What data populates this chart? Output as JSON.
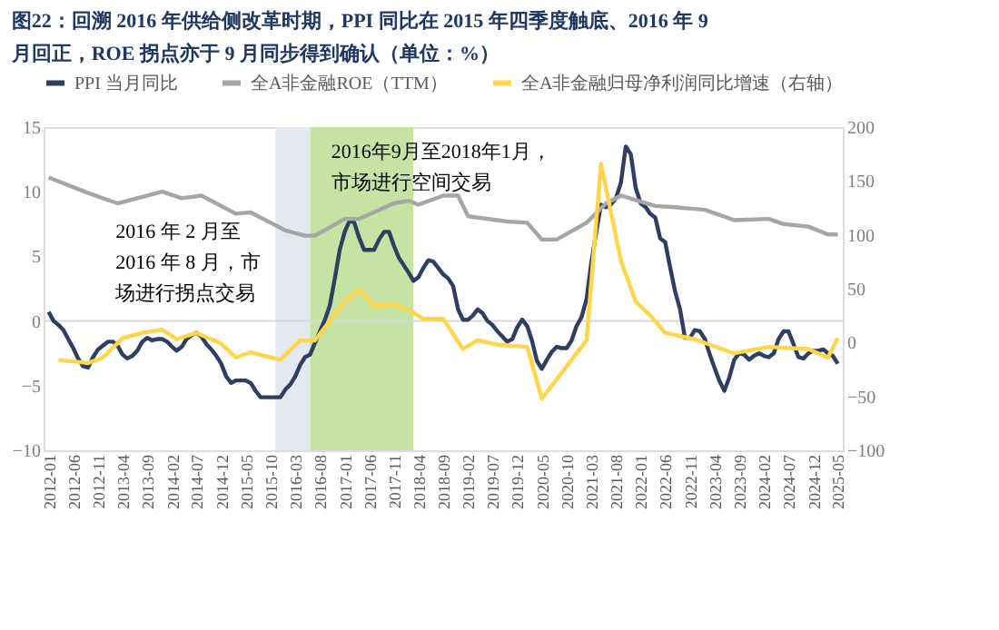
{
  "chart_data": {
    "type": "line",
    "title": "图22：回溯 2016 年供给侧改革时期，PPI 同比在 2015 年四季度触底、2016 年 9 月回正，ROE 拐点亦于 9 月同步得到确认（单位：%）",
    "x": [
      "2012-01",
      "2012-02",
      "2012-03",
      "2012-04",
      "2012-05",
      "2012-06",
      "2012-07",
      "2012-08",
      "2012-09",
      "2012-10",
      "2012-11",
      "2012-12",
      "2013-01",
      "2013-02",
      "2013-03",
      "2013-04",
      "2013-05",
      "2013-06",
      "2013-07",
      "2013-08",
      "2013-09",
      "2013-10",
      "2013-11",
      "2013-12",
      "2014-01",
      "2014-02",
      "2014-03",
      "2014-04",
      "2014-05",
      "2014-06",
      "2014-07",
      "2014-08",
      "2014-09",
      "2014-10",
      "2014-11",
      "2014-12",
      "2015-01",
      "2015-02",
      "2015-03",
      "2015-04",
      "2015-05",
      "2015-06",
      "2015-07",
      "2015-08",
      "2015-09",
      "2015-10",
      "2015-11",
      "2015-12",
      "2016-01",
      "2016-02",
      "2016-03",
      "2016-04",
      "2016-05",
      "2016-06",
      "2016-07",
      "2016-08",
      "2016-09",
      "2016-10",
      "2016-11",
      "2016-12",
      "2017-01",
      "2017-02",
      "2017-03",
      "2017-04",
      "2017-05",
      "2017-06",
      "2017-07",
      "2017-08",
      "2017-09",
      "2017-10",
      "2017-11",
      "2017-12",
      "2018-01",
      "2018-02",
      "2018-03",
      "2018-04",
      "2018-05",
      "2018-06",
      "2018-07",
      "2018-08",
      "2018-09",
      "2018-10",
      "2018-11",
      "2018-12",
      "2019-01",
      "2019-02",
      "2019-03",
      "2019-04",
      "2019-05",
      "2019-06",
      "2019-07",
      "2019-08",
      "2019-09",
      "2019-10",
      "2019-11",
      "2019-12",
      "2020-01",
      "2020-02",
      "2020-03",
      "2020-04",
      "2020-05",
      "2020-06",
      "2020-07",
      "2020-08",
      "2020-09",
      "2020-10",
      "2020-11",
      "2020-12",
      "2021-01",
      "2021-02",
      "2021-03",
      "2021-04",
      "2021-05",
      "2021-06",
      "2021-07",
      "2021-08",
      "2021-09",
      "2021-10",
      "2021-11",
      "2021-12",
      "2022-01",
      "2022-02",
      "2022-03",
      "2022-04",
      "2022-05",
      "2022-06",
      "2022-07",
      "2022-08",
      "2022-09",
      "2022-10",
      "2022-11",
      "2022-12",
      "2023-01",
      "2023-02",
      "2023-03",
      "2023-04",
      "2023-05",
      "2023-06",
      "2023-07",
      "2023-08",
      "2023-09",
      "2023-10",
      "2023-11",
      "2023-12",
      "2024-01",
      "2024-02",
      "2024-03",
      "2024-04",
      "2024-05",
      "2024-06",
      "2024-07",
      "2024-08",
      "2024-09",
      "2024-10",
      "2024-11",
      "2024-12",
      "2025-01",
      "2025-02",
      "2025-03",
      "2025-04",
      "2025-05"
    ],
    "series": [
      {
        "name": "PPI 当月同比",
        "color": "#2e3f63",
        "values": [
          0.7,
          0.0,
          -0.3,
          -0.7,
          -1.4,
          -2.1,
          -2.9,
          -3.5,
          -3.6,
          -2.8,
          -2.2,
          -1.9,
          -1.6,
          -1.6,
          -1.9,
          -2.6,
          -2.9,
          -2.7,
          -2.3,
          -1.6,
          -1.3,
          -1.5,
          -1.4,
          -1.4,
          -1.6,
          -2.0,
          -2.3,
          -2.0,
          -1.4,
          -1.1,
          -0.9,
          -1.2,
          -1.8,
          -2.2,
          -2.7,
          -3.3,
          -4.3,
          -4.8,
          -4.6,
          -4.6,
          -4.6,
          -4.8,
          -5.4,
          -5.9,
          -5.9,
          -5.9,
          -5.9,
          -5.9,
          -5.3,
          -4.9,
          -4.3,
          -3.4,
          -2.8,
          -2.6,
          -1.7,
          -0.8,
          0.1,
          1.2,
          3.3,
          5.5,
          6.9,
          7.8,
          7.6,
          6.4,
          5.5,
          5.5,
          5.5,
          6.3,
          6.9,
          6.9,
          5.8,
          4.9,
          4.3,
          3.7,
          3.1,
          3.4,
          4.1,
          4.7,
          4.6,
          4.1,
          3.6,
          3.3,
          2.7,
          0.9,
          0.1,
          0.1,
          0.4,
          0.9,
          0.6,
          0.0,
          -0.3,
          -0.8,
          -1.2,
          -1.6,
          -1.4,
          -0.5,
          0.1,
          -0.4,
          -1.5,
          -3.1,
          -3.7,
          -3.0,
          -2.4,
          -2.0,
          -2.1,
          -2.1,
          -1.5,
          -0.4,
          0.3,
          1.7,
          4.4,
          6.8,
          9.0,
          8.8,
          9.0,
          9.5,
          10.7,
          13.5,
          12.9,
          10.3,
          9.1,
          8.8,
          8.3,
          8.0,
          6.4,
          6.1,
          4.2,
          2.3,
          0.9,
          -1.3,
          -1.3,
          -0.7,
          -0.8,
          -1.4,
          -2.5,
          -3.6,
          -4.6,
          -5.4,
          -4.4,
          -3.0,
          -2.5,
          -2.6,
          -3.0,
          -2.7,
          -2.5,
          -2.7,
          -2.8,
          -2.5,
          -1.4,
          -0.8,
          -0.8,
          -1.8,
          -2.8,
          -2.9,
          -2.5,
          -2.3,
          -2.3,
          -2.2,
          -2.5,
          -2.7,
          -3.3
        ]
      },
      {
        "name": "全A非金融ROE（TTM）",
        "color": "#a6a6a6",
        "x": [
          "2012-01",
          "2012-09",
          "2013-03",
          "2013-12",
          "2014-04",
          "2014-08",
          "2015-03",
          "2015-06",
          "2016-01",
          "2016-05",
          "2016-07",
          "2017-01",
          "2017-04",
          "2017-11",
          "2018-02",
          "2018-04",
          "2018-09",
          "2018-12",
          "2019-02",
          "2019-10",
          "2020-02",
          "2020-05",
          "2020-08",
          "2021-02",
          "2021-06",
          "2021-09",
          "2022-04",
          "2022-08",
          "2023-02",
          "2023-08",
          "2024-03",
          "2024-06",
          "2024-11",
          "2025-03",
          "2025-05"
        ],
        "values": [
          11.1,
          9.9,
          9.1,
          10.0,
          9.5,
          9.7,
          8.3,
          8.4,
          7.0,
          6.6,
          6.6,
          7.9,
          7.9,
          9.1,
          9.3,
          9.0,
          9.7,
          9.7,
          8.1,
          7.7,
          7.6,
          6.3,
          6.3,
          7.6,
          9.1,
          9.7,
          8.9,
          8.8,
          8.6,
          7.8,
          7.9,
          7.5,
          7.3,
          6.7,
          6.7
        ]
      },
      {
        "name": "全A非金融归母净利润同比增速（右轴）",
        "color": "#ffd54a",
        "axis": "y2",
        "x": [
          "2012-03",
          "2012-09",
          "2012-12",
          "2013-04",
          "2013-08",
          "2013-12",
          "2014-03",
          "2014-07",
          "2014-12",
          "2015-03",
          "2015-06",
          "2015-12",
          "2016-04",
          "2016-07",
          "2017-01",
          "2017-04",
          "2017-07",
          "2017-11",
          "2018-02",
          "2018-05",
          "2018-09",
          "2019-01",
          "2019-04",
          "2019-08",
          "2020-02",
          "2020-05",
          "2021-02",
          "2021-05",
          "2021-09",
          "2021-12",
          "2022-03",
          "2022-06",
          "2022-12",
          "2023-08",
          "2024-03",
          "2024-11",
          "2025-03",
          "2025-05"
        ],
        "values": [
          -16,
          -19,
          -14,
          4,
          9,
          12,
          3,
          9,
          -1,
          -14,
          -9,
          -16,
          2,
          2,
          38,
          49,
          34,
          35,
          30,
          22,
          22,
          -6,
          2,
          -2,
          -4,
          -52,
          2,
          166,
          76,
          38,
          25,
          9,
          3,
          -10,
          -4,
          -6,
          -14,
          4
        ]
      }
    ],
    "ylim": [
      -10,
      15
    ],
    "yticks": [
      -10,
      -5,
      0,
      5,
      10,
      15
    ],
    "y2lim": [
      -100,
      200
    ],
    "y2ticks": [
      -100,
      -50,
      0,
      50,
      100,
      150,
      200
    ],
    "xlim": [
      "2011-12",
      "2025-06"
    ],
    "xticks": [
      "2012-01",
      "2012-06",
      "2012-11",
      "2013-04",
      "2013-09",
      "2014-02",
      "2014-07",
      "2014-12",
      "2015-05",
      "2015-10",
      "2016-03",
      "2016-08",
      "2017-01",
      "2017-06",
      "2017-11",
      "2018-04",
      "2018-09",
      "2019-02",
      "2019-07",
      "2019-12",
      "2020-05",
      "2020-10",
      "2021-03",
      "2021-08",
      "2022-01",
      "2022-06",
      "2022-11",
      "2023-04",
      "2023-09",
      "2024-02",
      "2024-07",
      "2024-12",
      "2025-05"
    ],
    "bands": [
      {
        "axis": "x",
        "from": "2015-11",
        "to": "2016-06",
        "color": "#e4e8ef"
      },
      {
        "axis": "x",
        "from": "2016-06",
        "to": "2018-03",
        "color": "#c5e3a2"
      }
    ],
    "ref_lines": [
      {
        "axis": "y",
        "value": 0,
        "color": "#d9d9d9"
      }
    ],
    "annotations": [
      "2016年9月至2018年1月，市场进行空间交易",
      "2016 年 2 月至2016 年 8 月，市场进行拐点交易"
    ],
    "legend": "top",
    "grid": false,
    "marker": "none",
    "line_style": "solid"
  }
}
